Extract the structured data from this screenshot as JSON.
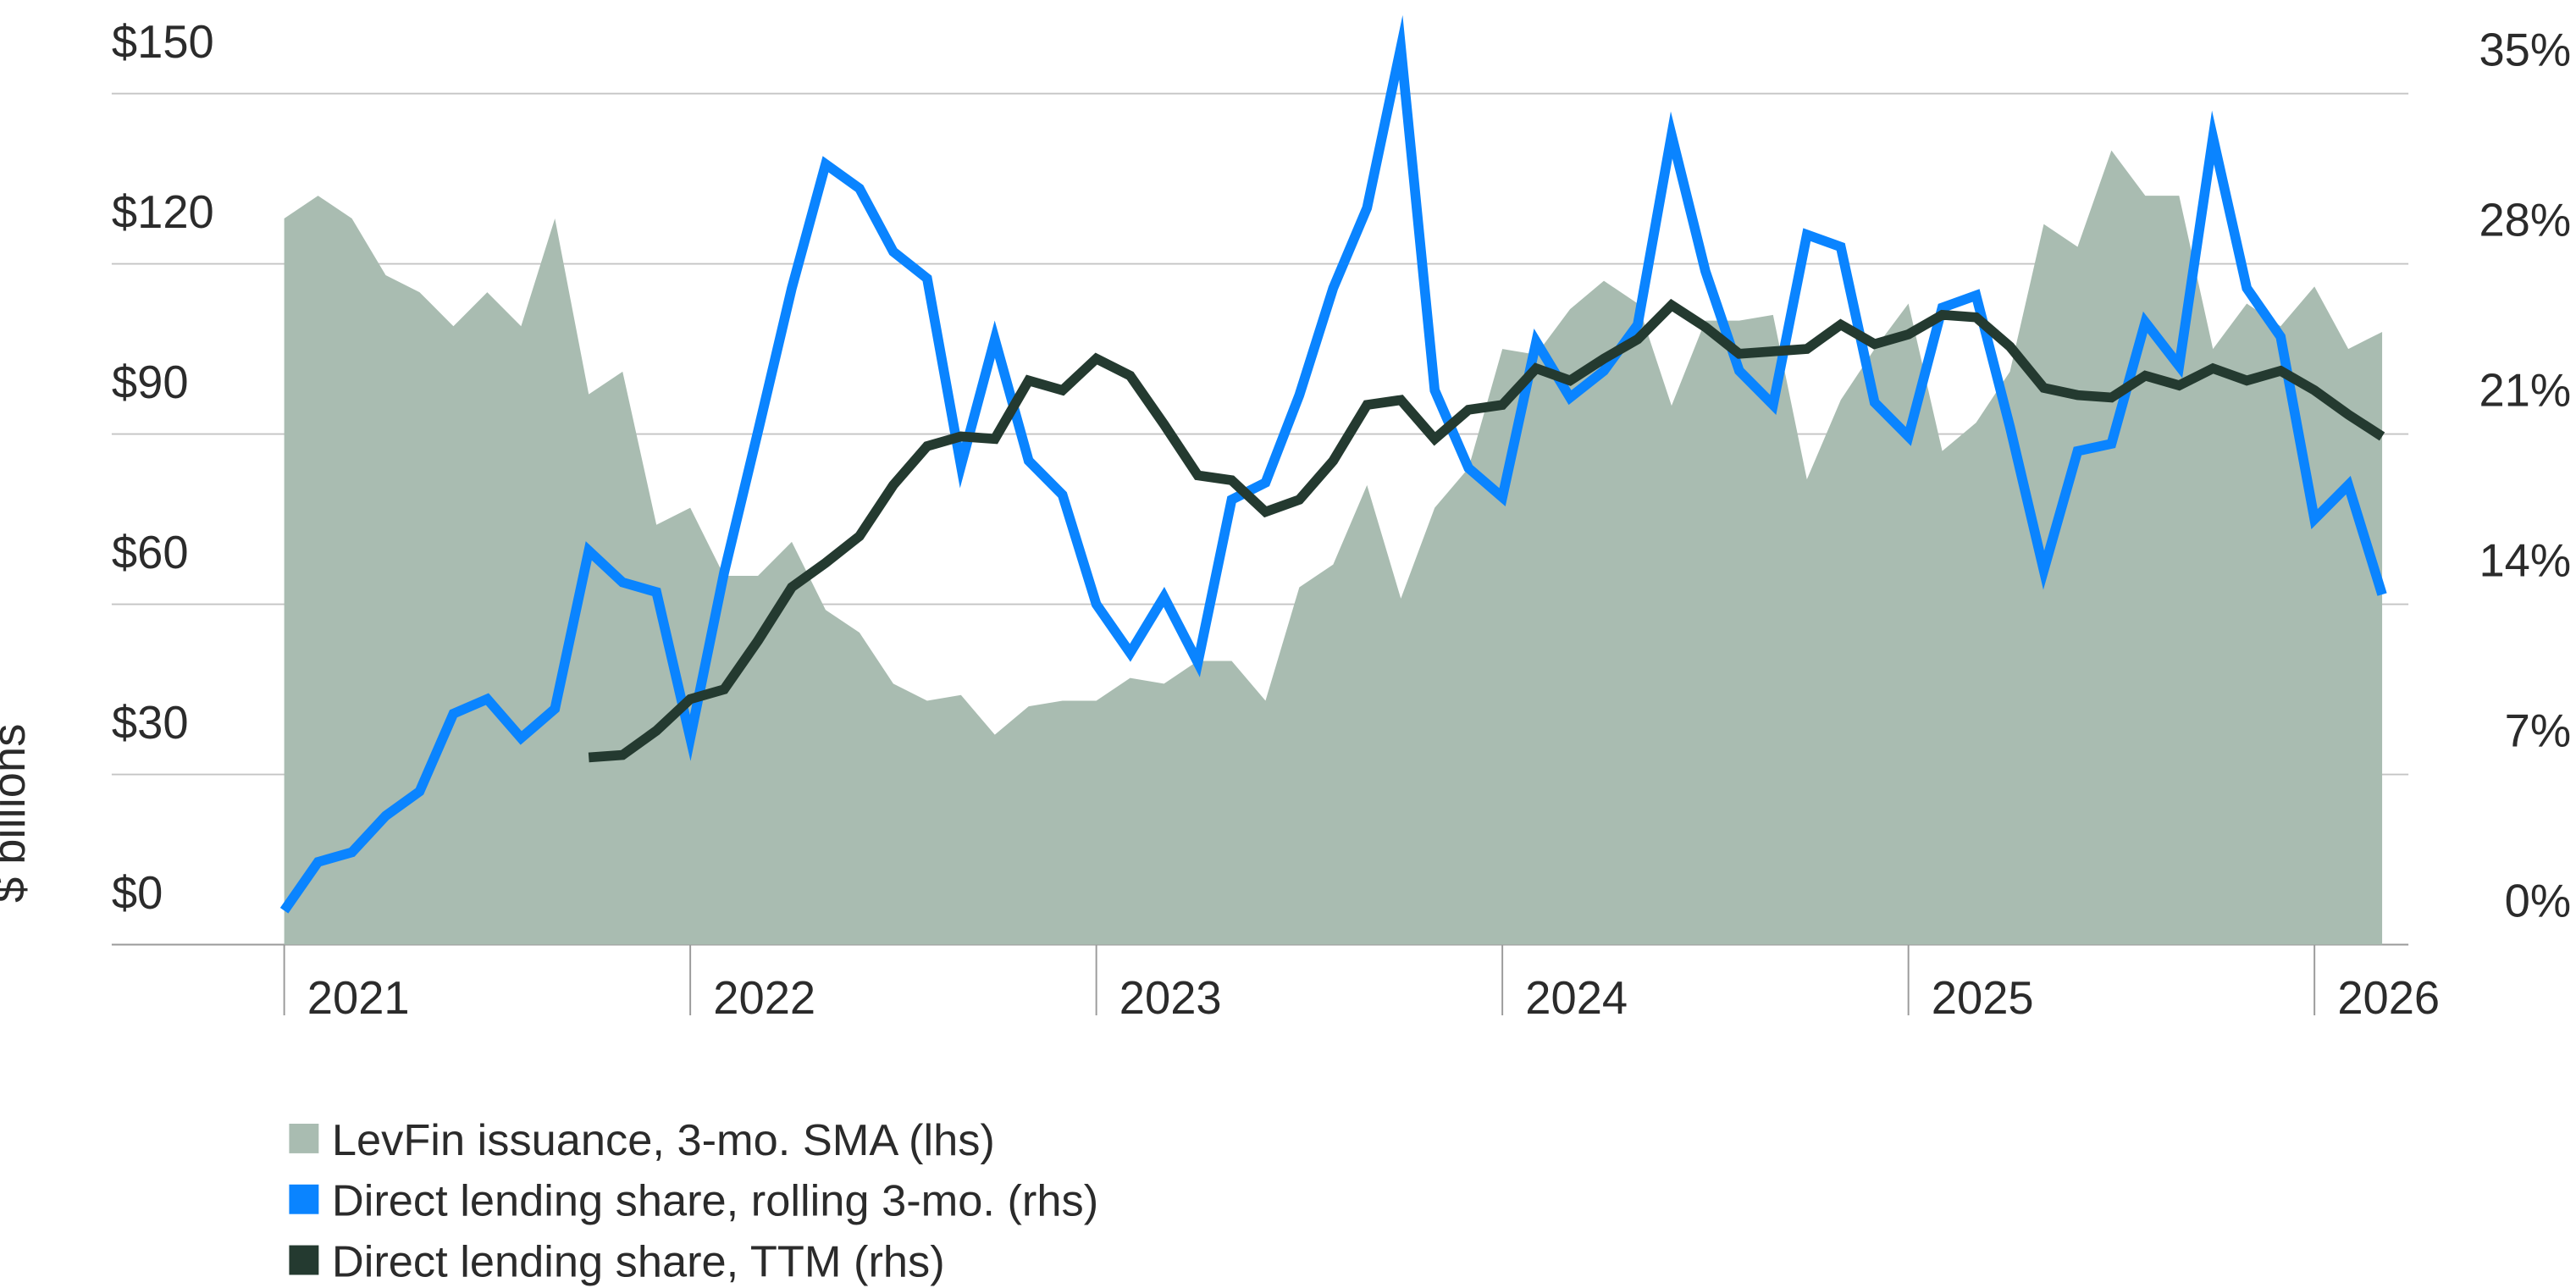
{
  "chart_data": {
    "type": "line",
    "y_label": "$ billions",
    "categories": [
      "2021",
      null,
      null,
      null,
      null,
      null,
      null,
      null,
      null,
      null,
      null,
      null,
      "2022",
      null,
      null,
      null,
      null,
      null,
      null,
      null,
      null,
      null,
      null,
      null,
      "2023",
      null,
      null,
      null,
      null,
      null,
      null,
      null,
      null,
      null,
      null,
      null,
      "2024",
      null,
      null,
      null,
      null,
      null,
      null,
      null,
      null,
      null,
      null,
      null,
      "2025",
      null,
      null,
      null,
      null,
      null,
      null,
      null,
      null,
      null,
      null,
      null,
      "2026",
      null,
      null
    ],
    "ylim": [
      0,
      150
    ],
    "yticks": [
      {
        "value": 0,
        "label": "$0"
      },
      {
        "value": 30,
        "label": "$30"
      },
      {
        "value": 60,
        "label": "$60"
      },
      {
        "value": 90,
        "label": "$90"
      },
      {
        "value": 120,
        "label": "$120"
      },
      {
        "value": 150,
        "label": "$150"
      }
    ],
    "y2lim": [
      0,
      35
    ],
    "y2ticks": [
      {
        "value": 0,
        "label": "0%"
      },
      {
        "value": 7,
        "label": "7%"
      },
      {
        "value": 14,
        "label": "14%"
      },
      {
        "value": 21,
        "label": "21%"
      },
      {
        "value": 28,
        "label": "28%"
      },
      {
        "value": 35,
        "label": "35%"
      }
    ],
    "grid": true,
    "series": [
      {
        "name": "LevFin issuance, 3-mo. SMA (lhs)",
        "type": "area",
        "axis": "y",
        "color": "#a9bcb1",
        "values": [
          128,
          132,
          128,
          118,
          115,
          109,
          115,
          109,
          128,
          97,
          101,
          74,
          77,
          65,
          65,
          71,
          59,
          55,
          46,
          43,
          44,
          37,
          42,
          43,
          43,
          47,
          46,
          50,
          50,
          43,
          63,
          67,
          81,
          61,
          77,
          84,
          105,
          104,
          112,
          117,
          113,
          95,
          110,
          110,
          111,
          82,
          96,
          105,
          113,
          87,
          92,
          101,
          127,
          123,
          140,
          132,
          132,
          105,
          113,
          109,
          116,
          105,
          108
        ]
      },
      {
        "name": "Direct lending share, rolling 3-mo. (rhs)",
        "type": "line",
        "axis": "y2",
        "color": "#0a84ff",
        "values": [
          1.4,
          3.4,
          3.8,
          5.3,
          6.3,
          9.5,
          10.1,
          8.5,
          9.7,
          16.2,
          14.9,
          14.5,
          8.5,
          15.3,
          21.1,
          27.0,
          32.1,
          31.1,
          28.5,
          27.4,
          19.7,
          24.9,
          19.9,
          18.5,
          14.0,
          12.0,
          14.3,
          11.6,
          18.3,
          19.0,
          22.6,
          27.0,
          30.3,
          36.9,
          22.8,
          19.6,
          18.4,
          24.8,
          22.5,
          23.6,
          25.5,
          33.3,
          27.7,
          23.6,
          22.2,
          29.2,
          28.7,
          22.3,
          20.9,
          26.2,
          26.7,
          21.3,
          15.4,
          20.3,
          20.6,
          25.6,
          23.8,
          33.2,
          27.0,
          25.0,
          17.5,
          18.9,
          14.4
        ]
      },
      {
        "name": "Direct lending share, TTM (rhs)",
        "type": "line",
        "axis": "y2",
        "color": "#243a30",
        "values": [
          null,
          null,
          null,
          null,
          null,
          null,
          null,
          null,
          null,
          7.7,
          7.8,
          8.8,
          10.1,
          10.5,
          12.5,
          14.7,
          15.7,
          16.8,
          18.9,
          20.5,
          20.9,
          20.8,
          23.2,
          22.8,
          24.1,
          23.4,
          21.4,
          19.3,
          19.1,
          17.8,
          18.3,
          19.9,
          22.2,
          22.4,
          20.8,
          22.0,
          22.2,
          23.7,
          23.2,
          24.1,
          24.9,
          26.3,
          25.4,
          24.3,
          24.4,
          24.5,
          25.5,
          24.7,
          25.1,
          25.9,
          25.8,
          24.6,
          22.9,
          22.6,
          22.5,
          23.4,
          23.0,
          23.7,
          23.2,
          23.6,
          22.8,
          21.8,
          20.9
        ]
      }
    ]
  }
}
